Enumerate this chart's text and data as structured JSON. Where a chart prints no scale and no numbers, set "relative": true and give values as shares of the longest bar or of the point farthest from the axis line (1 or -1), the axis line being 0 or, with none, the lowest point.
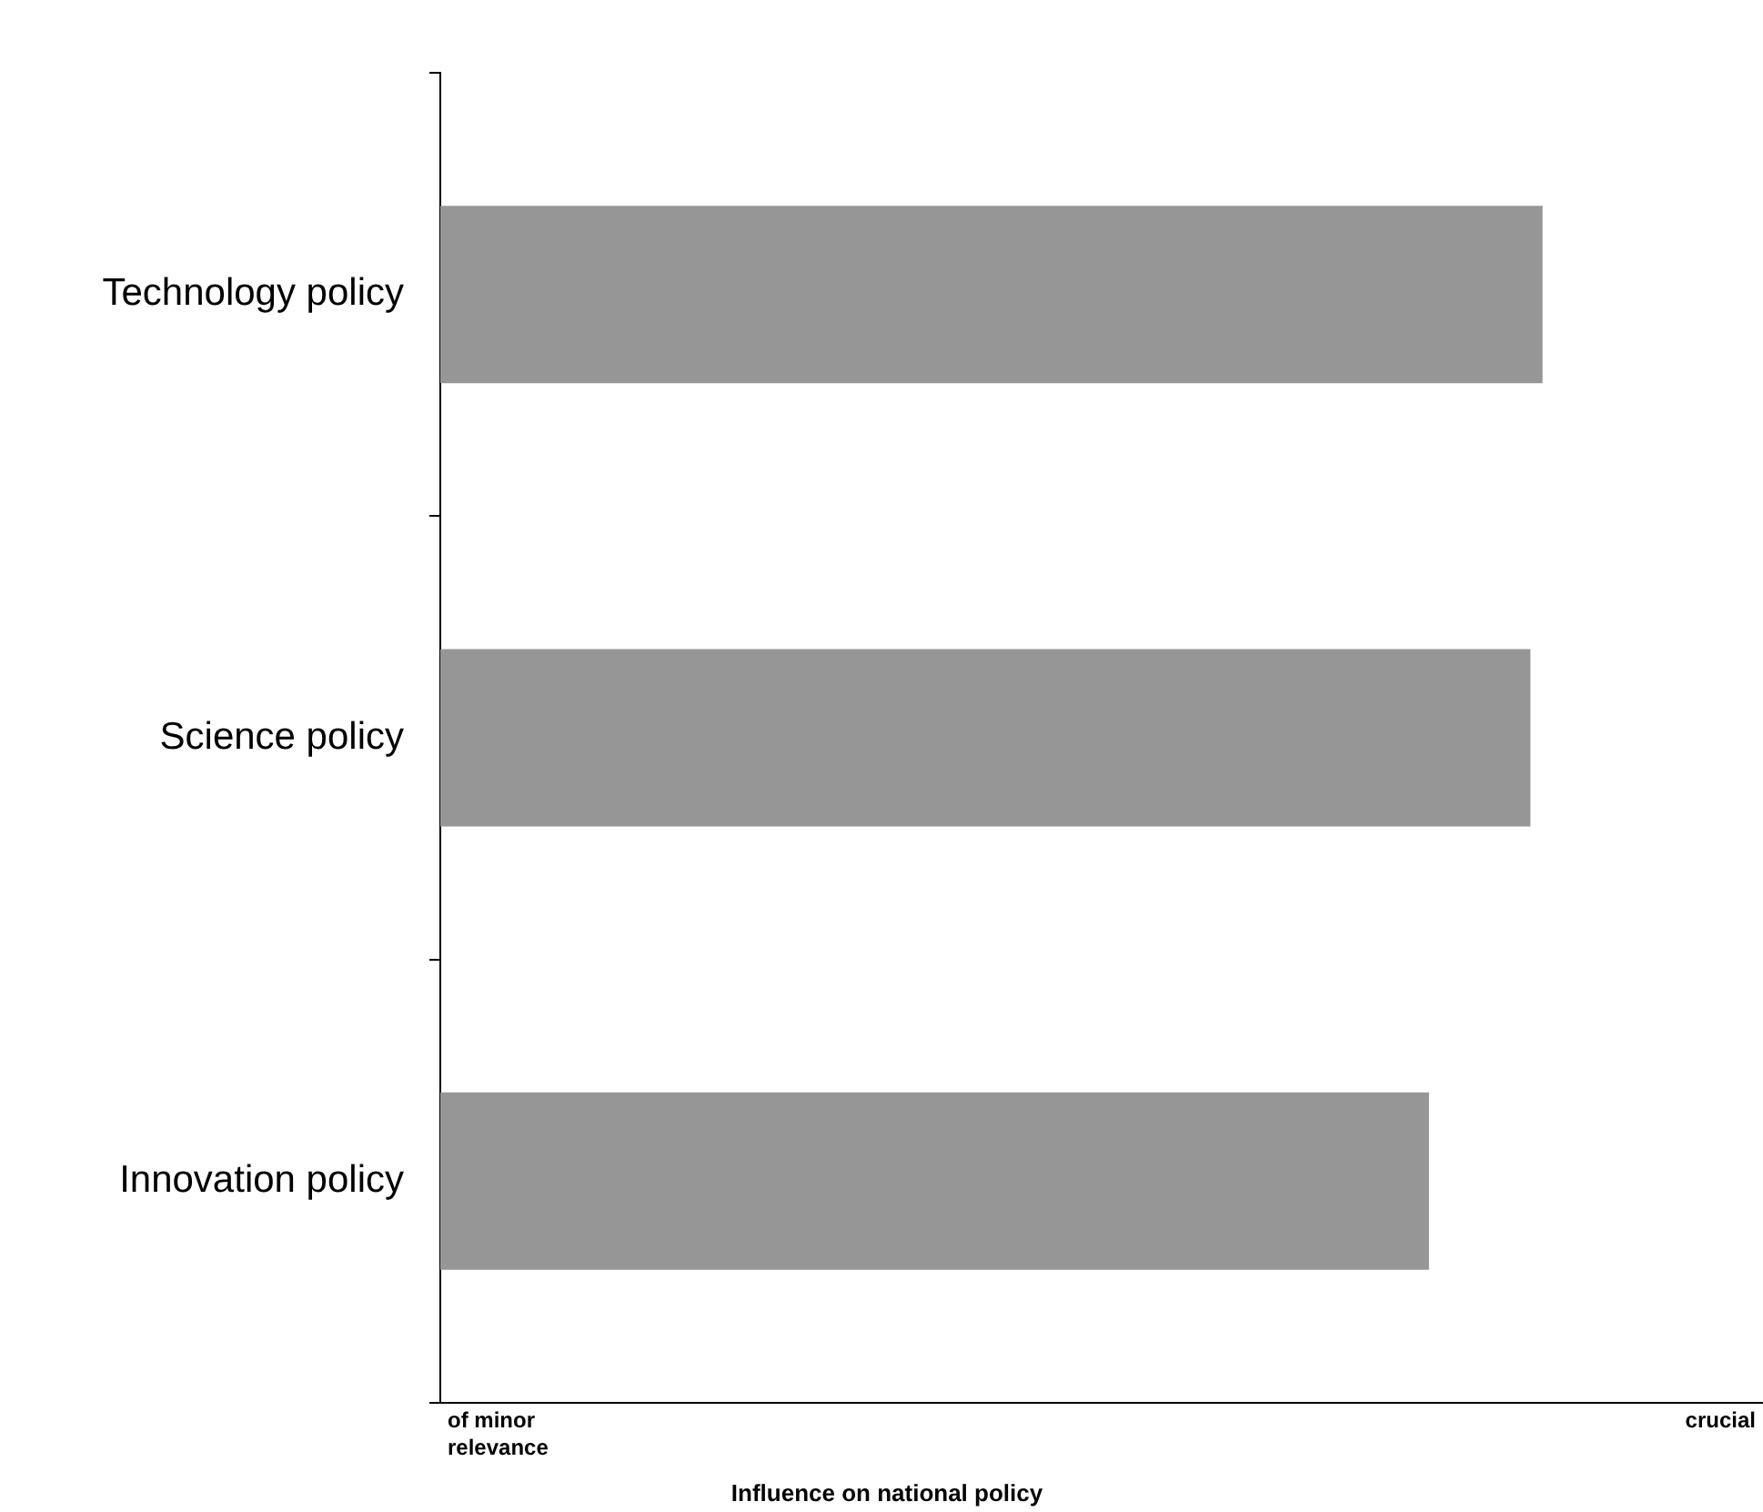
{
  "chart_data": {
    "type": "bar",
    "orientation": "horizontal",
    "relative": true,
    "categories": [
      "Technology policy",
      "Science policy",
      "Innovation policy"
    ],
    "values": [
      1,
      0.989,
      0.897
    ],
    "color": "#969696",
    "xlabel": "Influence on national policy",
    "annotations": [
      "of minor relevance",
      "crucial"
    ],
    "grid": false,
    "legend": false
  }
}
